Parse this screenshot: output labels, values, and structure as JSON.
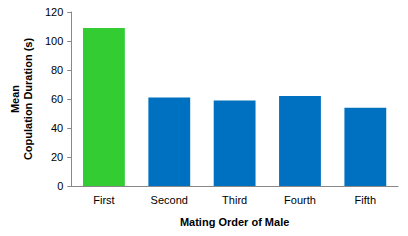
{
  "chart_data": {
    "type": "bar",
    "x_label": "Mating Order of Male",
    "y_label": "Mean\nCopulation Duration (s)",
    "categories": [
      "First",
      "Second",
      "Third",
      "Fourth",
      "Fifth"
    ],
    "values": [
      109,
      61,
      59,
      62,
      54
    ],
    "colors": [
      "#33cc33",
      "#0070c0",
      "#0070c0",
      "#0070c0",
      "#0070c0"
    ],
    "ylim": [
      0,
      120
    ],
    "yticks": [
      0,
      20,
      40,
      60,
      80,
      100,
      120
    ],
    "grid": false
  }
}
